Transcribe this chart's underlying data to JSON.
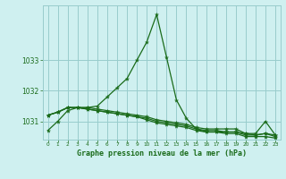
{
  "title": "Graphe pression niveau de la mer (hPa)",
  "bg_color": "#cff0f0",
  "grid_color": "#99cccc",
  "line_color": "#1a6b1a",
  "xlim": [
    -0.5,
    23.5
  ],
  "ylim": [
    1030.4,
    1034.8
  ],
  "yticks": [
    1031,
    1032,
    1033
  ],
  "xtick_labels": [
    "0",
    "1",
    "2",
    "3",
    "4",
    "5",
    "6",
    "7",
    "8",
    "9",
    "10",
    "11",
    "12",
    "13",
    "14",
    "15",
    "16",
    "17",
    "18",
    "19",
    "20",
    "21",
    "22",
    "23"
  ],
  "series": [
    [
      1030.7,
      1031.0,
      1031.35,
      1031.45,
      1031.45,
      1031.5,
      1031.8,
      1032.1,
      1032.4,
      1033.0,
      1033.6,
      1034.5,
      1033.1,
      1031.7,
      1031.1,
      1030.75,
      1030.65,
      1030.65,
      1030.65,
      1030.65,
      1030.6,
      1030.55,
      1030.6,
      1030.55
    ],
    [
      1031.2,
      1031.3,
      1031.45,
      1031.45,
      1031.45,
      1031.4,
      1031.35,
      1031.3,
      1031.25,
      1031.2,
      1031.15,
      1031.05,
      1031.0,
      1030.95,
      1030.9,
      1030.8,
      1030.75,
      1030.75,
      1030.75,
      1030.75,
      1030.6,
      1030.6,
      1031.0,
      1030.55
    ],
    [
      1031.2,
      1031.3,
      1031.45,
      1031.45,
      1031.4,
      1031.35,
      1031.3,
      1031.25,
      1031.2,
      1031.15,
      1031.1,
      1031.0,
      1030.95,
      1030.9,
      1030.85,
      1030.75,
      1030.7,
      1030.7,
      1030.65,
      1030.65,
      1030.55,
      1030.55,
      1030.6,
      1030.5
    ],
    [
      1031.2,
      1031.3,
      1031.45,
      1031.45,
      1031.4,
      1031.35,
      1031.3,
      1031.25,
      1031.2,
      1031.15,
      1031.05,
      1030.95,
      1030.9,
      1030.85,
      1030.8,
      1030.7,
      1030.65,
      1030.65,
      1030.6,
      1030.6,
      1030.5,
      1030.5,
      1030.5,
      1030.45
    ]
  ]
}
